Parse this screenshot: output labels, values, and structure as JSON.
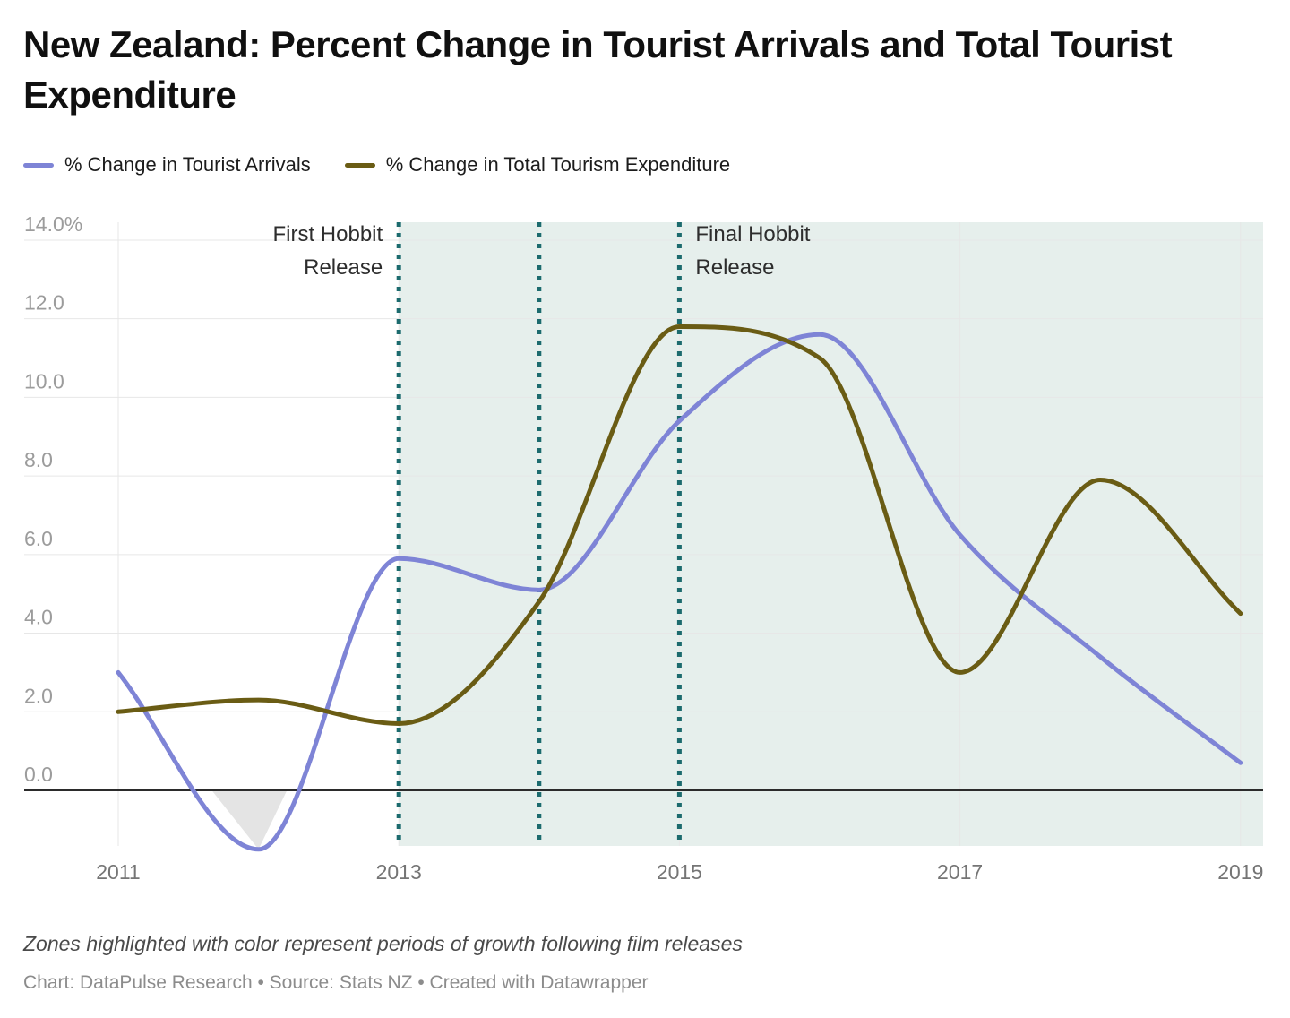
{
  "title": "New Zealand: Percent Change in Tourist Arrivals and Total Tourist Expenditure",
  "legend": {
    "items": [
      {
        "label": "% Change in Tourist Arrivals",
        "color": "#7e84d6"
      },
      {
        "label": "% Change in Total Tourism Expenditure",
        "color": "#6a5c14"
      }
    ]
  },
  "chart_data": {
    "type": "line",
    "curve": "monotone",
    "x": [
      2011,
      2012,
      2013,
      2014,
      2015,
      2016,
      2017,
      2018,
      2019
    ],
    "series": [
      {
        "name": "% Change in Tourist Arrivals",
        "color": "#7e84d6",
        "values": [
          3.0,
          -1.5,
          5.9,
          5.1,
          9.4,
          11.6,
          6.5,
          3.4,
          0.7
        ]
      },
      {
        "name": "% Change in Total Tourism Expenditure",
        "color": "#6a5c14",
        "values": [
          2.0,
          2.3,
          1.7,
          4.8,
          11.8,
          11.0,
          3.0,
          7.9,
          4.5
        ]
      }
    ],
    "title": "New Zealand: Percent Change in Tourist Arrivals and Total Tourist Expenditure",
    "xlabel": "",
    "ylabel": "",
    "ylim": [
      -1.4,
      14.0
    ],
    "grid": true,
    "legend_position": "top",
    "yticks": {
      "values": [
        0,
        2,
        4,
        6,
        8,
        10,
        12,
        14
      ],
      "labels": [
        "0.0",
        "2.0",
        "4.0",
        "6.0",
        "8.0",
        "10.0",
        "12.0",
        "14.0%"
      ]
    },
    "xticks": {
      "values": [
        2011,
        2013,
        2015,
        2017,
        2019
      ],
      "labels": [
        "2011",
        "2013",
        "2015",
        "2017",
        "2019"
      ]
    },
    "highlight_zone": {
      "from": 2013,
      "to": 2019,
      "color": "#e6efec"
    },
    "event_lines": {
      "xs": [
        2013,
        2014,
        2015
      ],
      "color": "#1c6b6e"
    },
    "annotations": [
      {
        "lines": [
          "First Hobbit",
          "Release"
        ],
        "x": 2013,
        "anchor": "end"
      },
      {
        "lines": [
          "Final Hobbit",
          "Release"
        ],
        "x": 2015,
        "anchor": "start"
      }
    ],
    "colors": {
      "grid": "#e7e7e7",
      "zero_line": "#2b2b2b",
      "y_tick_text": "#9c9c9c",
      "x_tick_text": "#757575",
      "annotation_text": "#2d2d2d",
      "negative_area": "#e4e4e4"
    }
  },
  "footnote": "Zones highlighted with color represent periods of growth following film releases",
  "credit": "Chart: DataPulse Research • Source: Stats NZ • Created with Datawrapper"
}
